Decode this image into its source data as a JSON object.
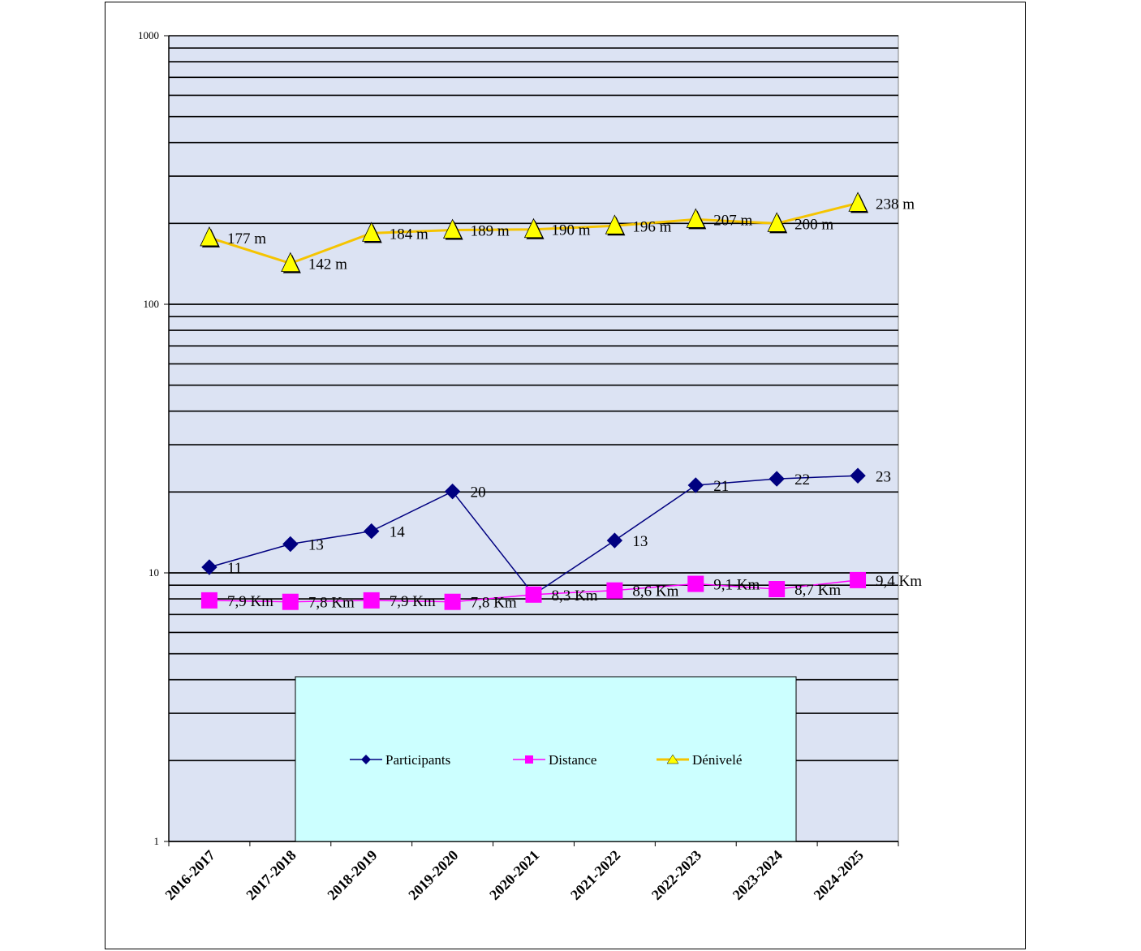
{
  "chart_data": {
    "type": "line",
    "title": "",
    "xlabel": "",
    "ylabel": "",
    "yscale": "log",
    "ylim": [
      1,
      1000
    ],
    "y_ticks": [
      1,
      10,
      100,
      1000
    ],
    "y_tick_labels": [
      "1",
      "10",
      "100",
      "1000"
    ],
    "grid": true,
    "legend_position": "bottom-center inside plot",
    "categories": [
      "2016-2017",
      "2017-2018",
      "2018-2019",
      "2019-2020",
      "2020-2021",
      "2021-2022",
      "2022-2023",
      "2023-2024",
      "2024-2025"
    ],
    "series": [
      {
        "name": "Participants",
        "marker": "diamond",
        "color": "#000080",
        "values": [
          10.5,
          12.8,
          14.3,
          20.1,
          8.3,
          13.2,
          21.2,
          22.4,
          23
        ],
        "labels": [
          "11",
          "13",
          "14",
          "20",
          "",
          "13",
          "21",
          "22",
          "23"
        ]
      },
      {
        "name": "Distance",
        "marker": "square",
        "color": "#FF00FF",
        "values": [
          7.9,
          7.8,
          7.9,
          7.8,
          8.3,
          8.6,
          9.1,
          8.7,
          9.4
        ],
        "labels": [
          "7,9 Km",
          "7,8 Km",
          "7,9 Km",
          "7,8 Km",
          "8,3 Km",
          "8,6 Km",
          "9,1 Km",
          "8,7 Km",
          "9,4 Km"
        ]
      },
      {
        "name": "Dénivelé",
        "marker": "triangle",
        "color": "#FFFF00",
        "line_color": "#F5C400",
        "values": [
          177,
          142,
          184,
          189,
          190,
          196,
          207,
          200,
          238
        ],
        "labels": [
          "177 m",
          "142 m",
          "184 m",
          "189 m",
          "190 m",
          "196 m",
          "207 m",
          "200 m",
          "238 m"
        ]
      }
    ]
  },
  "colors": {
    "plot_background": "#DCE3F3",
    "legend_background": "#CCFFFF",
    "gridline": "#000000"
  }
}
